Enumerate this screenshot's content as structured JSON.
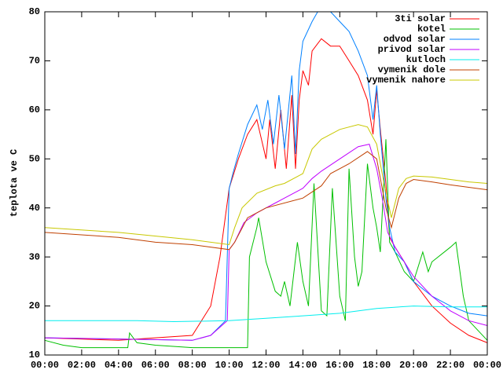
{
  "chart_data": {
    "type": "line",
    "ylabel": "teplota ve C",
    "legend": "top right",
    "xlim": [
      0,
      24
    ],
    "xticks": [
      {
        "value": 0,
        "label": "00:00"
      },
      {
        "value": 2,
        "label": "02:00"
      },
      {
        "value": 4,
        "label": "04:00"
      },
      {
        "value": 6,
        "label": "06:00"
      },
      {
        "value": 8,
        "label": "08:00"
      },
      {
        "value": 10,
        "label": "10:00"
      },
      {
        "value": 12,
        "label": "12:00"
      },
      {
        "value": 14,
        "label": "14:00"
      },
      {
        "value": 16,
        "label": "16:00"
      },
      {
        "value": 18,
        "label": "18:00"
      },
      {
        "value": 20,
        "label": "20:00"
      },
      {
        "value": 22,
        "label": "22:00"
      },
      {
        "value": 24,
        "label": "00:00"
      }
    ],
    "ylim": [
      10,
      80
    ],
    "yticks": [
      10,
      20,
      30,
      40,
      50,
      60,
      70,
      80
    ],
    "series": [
      {
        "name": "3ti solar",
        "color": "#ff0000",
        "x": [
          0,
          4,
          8,
          9,
          9.5,
          10,
          10.5,
          11,
          11.5,
          12,
          12.2,
          12.5,
          12.8,
          13.1,
          13.4,
          13.6,
          13.8,
          14,
          14.3,
          14.5,
          15,
          15.5,
          16,
          16.5,
          17,
          17.5,
          17.8,
          18,
          18.2,
          18.5,
          18.7,
          19,
          19.5,
          20,
          21,
          22,
          23,
          24
        ],
        "values": [
          13.5,
          13,
          14,
          20,
          30,
          44,
          50,
          55,
          58,
          50,
          58,
          48,
          60,
          48,
          63,
          48,
          62,
          68,
          65,
          72,
          74.5,
          73,
          73,
          70,
          67,
          62,
          55,
          64,
          56,
          45,
          34,
          32,
          29,
          25,
          20,
          16.5,
          14,
          12.5
        ]
      },
      {
        "name": "kotel",
        "color": "#00c000",
        "x": [
          0,
          1,
          2,
          4.5,
          4.6,
          5,
          6,
          8,
          10,
          11,
          11.1,
          11.5,
          11.6,
          12,
          12.5,
          12.8,
          13,
          13.3,
          13.7,
          14,
          14.3,
          14.6,
          15,
          15.3,
          15.6,
          16,
          16.3,
          16.5,
          16.8,
          17,
          17.2,
          17.5,
          17.8,
          18,
          18.2,
          18.5,
          18.7,
          19,
          19.5,
          20,
          20.5,
          20.8,
          21,
          22,
          22.3,
          22.7,
          23,
          24
        ],
        "values": [
          13,
          12,
          11.5,
          11.5,
          14.5,
          12.5,
          12,
          11.5,
          11.5,
          11.5,
          30,
          36,
          38,
          29,
          23,
          22,
          25,
          20,
          33,
          25,
          20,
          45,
          19,
          18,
          44,
          22,
          17,
          48,
          30,
          24,
          27,
          49,
          40,
          36,
          31,
          54,
          33,
          31,
          27,
          25,
          31,
          27,
          29,
          32,
          33,
          22,
          17,
          13
        ]
      },
      {
        "name": "odvod solar",
        "color": "#0080ff",
        "x": [
          0,
          8,
          9,
          9.8,
          10,
          10.2,
          10.5,
          11,
          11.5,
          11.8,
          12.1,
          12.4,
          12.7,
          13,
          13.4,
          13.6,
          13.8,
          14,
          14.5,
          14.8,
          15.5,
          16,
          16.5,
          17,
          17.5,
          17.8,
          18,
          18.2,
          18.5,
          18.7,
          19,
          19.5,
          20,
          21,
          22,
          23,
          24
        ],
        "values": [
          13.5,
          13,
          14,
          17,
          44,
          47,
          51,
          57,
          61,
          56,
          62,
          53,
          63,
          52,
          67,
          51,
          68,
          74,
          78,
          80,
          80,
          78,
          76,
          72,
          67,
          58,
          65,
          55,
          42,
          36,
          31,
          29,
          25,
          22,
          20,
          18.5,
          18
        ]
      },
      {
        "name": "privod solar",
        "color": "#c000ff",
        "x": [
          0,
          8,
          9,
          9.9,
          10,
          10.3,
          10.8,
          11.5,
          12,
          12.5,
          13,
          14,
          14.5,
          15,
          16,
          17,
          17.6,
          18,
          18.3,
          18.6,
          19,
          19.5,
          20,
          21,
          22,
          23,
          24
        ],
        "values": [
          13.5,
          13,
          14,
          17,
          31.5,
          33,
          37,
          39,
          40,
          41,
          42,
          44,
          46,
          47.5,
          50,
          52.5,
          53,
          48,
          42,
          35,
          32,
          29,
          26,
          22,
          19,
          17,
          16
        ]
      },
      {
        "name": "kutloch",
        "color": "#00eeee",
        "x": [
          0,
          5,
          7,
          10,
          12,
          14,
          16,
          18,
          20,
          22,
          24
        ],
        "values": [
          17,
          17,
          16.8,
          17,
          17.5,
          18,
          18.5,
          19.5,
          20,
          19.8,
          19.8
        ]
      },
      {
        "name": "vymenik dole",
        "color": "#c04000",
        "x": [
          0,
          4,
          6,
          8,
          10,
          10.3,
          11,
          12,
          14,
          15,
          15.5,
          16.5,
          17.5,
          18,
          18.5,
          18.8,
          19.2,
          19.6,
          20,
          21,
          22,
          23,
          24
        ],
        "values": [
          35,
          34,
          33,
          32.5,
          31.5,
          33,
          38,
          40,
          42,
          44.5,
          47,
          49,
          51.5,
          50,
          40,
          36,
          42,
          45,
          45.8,
          45.3,
          44.7,
          44.2,
          43.7
        ]
      },
      {
        "name": "vymenik nahore",
        "color": "#c8c800",
        "x": [
          0,
          4,
          8,
          10,
          10.3,
          10.7,
          11.5,
          12.5,
          13,
          14,
          14.5,
          15,
          16,
          17,
          17.5,
          18,
          18.4,
          18.8,
          19.2,
          19.6,
          20,
          21,
          22,
          23,
          24
        ],
        "values": [
          36,
          35,
          33.5,
          32.5,
          36,
          40,
          43,
          44.5,
          45,
          47,
          52,
          54,
          56,
          57,
          56.5,
          53,
          45,
          38,
          44,
          46,
          46.5,
          46.3,
          45.8,
          45.3,
          45
        ]
      }
    ]
  }
}
